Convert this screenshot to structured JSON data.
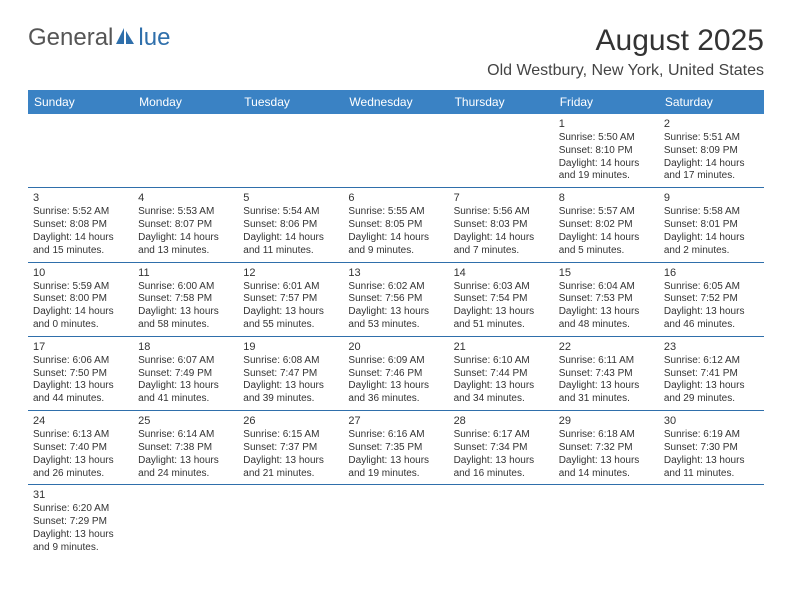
{
  "logo": {
    "part1": "General",
    "part2": "lue",
    "brand_color": "#2f6fab"
  },
  "header": {
    "title": "August 2025",
    "location": "Old Westbury, New York, United States"
  },
  "colors": {
    "header_bg": "#3a82c4",
    "header_fg": "#ffffff",
    "cell_border": "#2f6fab",
    "text": "#333333"
  },
  "dayHeaders": [
    "Sunday",
    "Monday",
    "Tuesday",
    "Wednesday",
    "Thursday",
    "Friday",
    "Saturday"
  ],
  "weeks": [
    [
      null,
      null,
      null,
      null,
      null,
      {
        "n": "1",
        "sr": "Sunrise: 5:50 AM",
        "ss": "Sunset: 8:10 PM",
        "d1": "Daylight: 14 hours",
        "d2": "and 19 minutes."
      },
      {
        "n": "2",
        "sr": "Sunrise: 5:51 AM",
        "ss": "Sunset: 8:09 PM",
        "d1": "Daylight: 14 hours",
        "d2": "and 17 minutes."
      }
    ],
    [
      {
        "n": "3",
        "sr": "Sunrise: 5:52 AM",
        "ss": "Sunset: 8:08 PM",
        "d1": "Daylight: 14 hours",
        "d2": "and 15 minutes."
      },
      {
        "n": "4",
        "sr": "Sunrise: 5:53 AM",
        "ss": "Sunset: 8:07 PM",
        "d1": "Daylight: 14 hours",
        "d2": "and 13 minutes."
      },
      {
        "n": "5",
        "sr": "Sunrise: 5:54 AM",
        "ss": "Sunset: 8:06 PM",
        "d1": "Daylight: 14 hours",
        "d2": "and 11 minutes."
      },
      {
        "n": "6",
        "sr": "Sunrise: 5:55 AM",
        "ss": "Sunset: 8:05 PM",
        "d1": "Daylight: 14 hours",
        "d2": "and 9 minutes."
      },
      {
        "n": "7",
        "sr": "Sunrise: 5:56 AM",
        "ss": "Sunset: 8:03 PM",
        "d1": "Daylight: 14 hours",
        "d2": "and 7 minutes."
      },
      {
        "n": "8",
        "sr": "Sunrise: 5:57 AM",
        "ss": "Sunset: 8:02 PM",
        "d1": "Daylight: 14 hours",
        "d2": "and 5 minutes."
      },
      {
        "n": "9",
        "sr": "Sunrise: 5:58 AM",
        "ss": "Sunset: 8:01 PM",
        "d1": "Daylight: 14 hours",
        "d2": "and 2 minutes."
      }
    ],
    [
      {
        "n": "10",
        "sr": "Sunrise: 5:59 AM",
        "ss": "Sunset: 8:00 PM",
        "d1": "Daylight: 14 hours",
        "d2": "and 0 minutes."
      },
      {
        "n": "11",
        "sr": "Sunrise: 6:00 AM",
        "ss": "Sunset: 7:58 PM",
        "d1": "Daylight: 13 hours",
        "d2": "and 58 minutes."
      },
      {
        "n": "12",
        "sr": "Sunrise: 6:01 AM",
        "ss": "Sunset: 7:57 PM",
        "d1": "Daylight: 13 hours",
        "d2": "and 55 minutes."
      },
      {
        "n": "13",
        "sr": "Sunrise: 6:02 AM",
        "ss": "Sunset: 7:56 PM",
        "d1": "Daylight: 13 hours",
        "d2": "and 53 minutes."
      },
      {
        "n": "14",
        "sr": "Sunrise: 6:03 AM",
        "ss": "Sunset: 7:54 PM",
        "d1": "Daylight: 13 hours",
        "d2": "and 51 minutes."
      },
      {
        "n": "15",
        "sr": "Sunrise: 6:04 AM",
        "ss": "Sunset: 7:53 PM",
        "d1": "Daylight: 13 hours",
        "d2": "and 48 minutes."
      },
      {
        "n": "16",
        "sr": "Sunrise: 6:05 AM",
        "ss": "Sunset: 7:52 PM",
        "d1": "Daylight: 13 hours",
        "d2": "and 46 minutes."
      }
    ],
    [
      {
        "n": "17",
        "sr": "Sunrise: 6:06 AM",
        "ss": "Sunset: 7:50 PM",
        "d1": "Daylight: 13 hours",
        "d2": "and 44 minutes."
      },
      {
        "n": "18",
        "sr": "Sunrise: 6:07 AM",
        "ss": "Sunset: 7:49 PM",
        "d1": "Daylight: 13 hours",
        "d2": "and 41 minutes."
      },
      {
        "n": "19",
        "sr": "Sunrise: 6:08 AM",
        "ss": "Sunset: 7:47 PM",
        "d1": "Daylight: 13 hours",
        "d2": "and 39 minutes."
      },
      {
        "n": "20",
        "sr": "Sunrise: 6:09 AM",
        "ss": "Sunset: 7:46 PM",
        "d1": "Daylight: 13 hours",
        "d2": "and 36 minutes."
      },
      {
        "n": "21",
        "sr": "Sunrise: 6:10 AM",
        "ss": "Sunset: 7:44 PM",
        "d1": "Daylight: 13 hours",
        "d2": "and 34 minutes."
      },
      {
        "n": "22",
        "sr": "Sunrise: 6:11 AM",
        "ss": "Sunset: 7:43 PM",
        "d1": "Daylight: 13 hours",
        "d2": "and 31 minutes."
      },
      {
        "n": "23",
        "sr": "Sunrise: 6:12 AM",
        "ss": "Sunset: 7:41 PM",
        "d1": "Daylight: 13 hours",
        "d2": "and 29 minutes."
      }
    ],
    [
      {
        "n": "24",
        "sr": "Sunrise: 6:13 AM",
        "ss": "Sunset: 7:40 PM",
        "d1": "Daylight: 13 hours",
        "d2": "and 26 minutes."
      },
      {
        "n": "25",
        "sr": "Sunrise: 6:14 AM",
        "ss": "Sunset: 7:38 PM",
        "d1": "Daylight: 13 hours",
        "d2": "and 24 minutes."
      },
      {
        "n": "26",
        "sr": "Sunrise: 6:15 AM",
        "ss": "Sunset: 7:37 PM",
        "d1": "Daylight: 13 hours",
        "d2": "and 21 minutes."
      },
      {
        "n": "27",
        "sr": "Sunrise: 6:16 AM",
        "ss": "Sunset: 7:35 PM",
        "d1": "Daylight: 13 hours",
        "d2": "and 19 minutes."
      },
      {
        "n": "28",
        "sr": "Sunrise: 6:17 AM",
        "ss": "Sunset: 7:34 PM",
        "d1": "Daylight: 13 hours",
        "d2": "and 16 minutes."
      },
      {
        "n": "29",
        "sr": "Sunrise: 6:18 AM",
        "ss": "Sunset: 7:32 PM",
        "d1": "Daylight: 13 hours",
        "d2": "and 14 minutes."
      },
      {
        "n": "30",
        "sr": "Sunrise: 6:19 AM",
        "ss": "Sunset: 7:30 PM",
        "d1": "Daylight: 13 hours",
        "d2": "and 11 minutes."
      }
    ],
    [
      {
        "n": "31",
        "sr": "Sunrise: 6:20 AM",
        "ss": "Sunset: 7:29 PM",
        "d1": "Daylight: 13 hours",
        "d2": "and 9 minutes."
      },
      null,
      null,
      null,
      null,
      null,
      null
    ]
  ]
}
